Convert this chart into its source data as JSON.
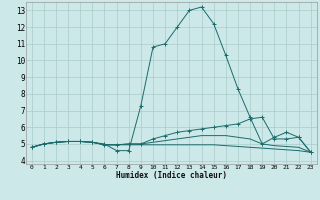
{
  "xlabel": "Humidex (Indice chaleur)",
  "ylabel": "",
  "xlim": [
    -0.5,
    23.5
  ],
  "ylim": [
    3.8,
    13.5
  ],
  "yticks": [
    4,
    5,
    6,
    7,
    8,
    9,
    10,
    11,
    12,
    13
  ],
  "xticks": [
    0,
    1,
    2,
    3,
    4,
    5,
    6,
    7,
    8,
    9,
    10,
    11,
    12,
    13,
    14,
    15,
    16,
    17,
    18,
    19,
    20,
    21,
    22,
    23
  ],
  "background_color": "#cce8e8",
  "grid_color": "#aacccc",
  "line_color": "#1a6b6b",
  "lines": [
    {
      "x": [
        0,
        1,
        2,
        3,
        4,
        5,
        6,
        7,
        8,
        9,
        10,
        11,
        12,
        13,
        14,
        15,
        16,
        17,
        18,
        19,
        20,
        21,
        22,
        23
      ],
      "y": [
        4.8,
        5.0,
        5.1,
        5.15,
        5.15,
        5.1,
        5.0,
        4.6,
        4.6,
        7.3,
        10.8,
        11.0,
        12.0,
        13.0,
        13.2,
        12.2,
        10.3,
        8.3,
        6.6,
        5.0,
        5.4,
        5.7,
        5.4,
        4.5
      ],
      "marker": "+"
    },
    {
      "x": [
        0,
        1,
        2,
        3,
        4,
        5,
        6,
        7,
        8,
        9,
        10,
        11,
        12,
        13,
        14,
        15,
        16,
        17,
        18,
        19,
        20,
        21,
        22,
        23
      ],
      "y": [
        4.8,
        5.0,
        5.1,
        5.15,
        5.15,
        5.1,
        4.95,
        4.95,
        5.0,
        5.0,
        5.3,
        5.5,
        5.7,
        5.8,
        5.9,
        6.0,
        6.1,
        6.2,
        6.5,
        6.6,
        5.3,
        5.3,
        5.4,
        4.5
      ],
      "marker": "+"
    },
    {
      "x": [
        0,
        1,
        2,
        3,
        4,
        5,
        6,
        7,
        8,
        9,
        10,
        11,
        12,
        13,
        14,
        15,
        16,
        17,
        18,
        19,
        20,
        21,
        22,
        23
      ],
      "y": [
        4.8,
        5.0,
        5.1,
        5.15,
        5.15,
        5.1,
        4.95,
        4.95,
        5.0,
        5.0,
        5.1,
        5.2,
        5.3,
        5.4,
        5.5,
        5.5,
        5.5,
        5.4,
        5.3,
        5.0,
        4.9,
        4.85,
        4.8,
        4.5
      ],
      "marker": null
    },
    {
      "x": [
        0,
        1,
        2,
        3,
        4,
        5,
        6,
        7,
        8,
        9,
        10,
        11,
        12,
        13,
        14,
        15,
        16,
        17,
        18,
        19,
        20,
        21,
        22,
        23
      ],
      "y": [
        4.8,
        5.0,
        5.1,
        5.15,
        5.15,
        5.1,
        4.95,
        4.95,
        4.95,
        4.95,
        4.95,
        4.95,
        4.95,
        4.95,
        4.95,
        4.95,
        4.9,
        4.85,
        4.8,
        4.75,
        4.7,
        4.65,
        4.6,
        4.5
      ],
      "marker": null
    }
  ],
  "figsize": [
    3.2,
    2.0
  ],
  "dpi": 100
}
